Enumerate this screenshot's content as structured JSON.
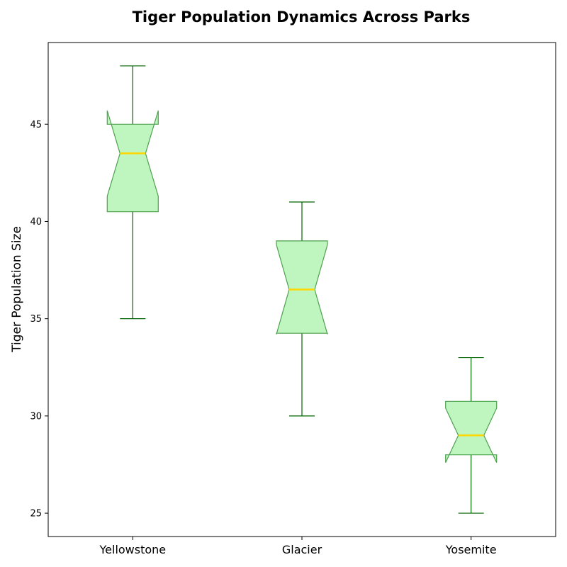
{
  "chart_data": {
    "type": "box",
    "title": "Tiger Population Dynamics Across Parks",
    "xlabel": "",
    "ylabel": "Tiger Population Size",
    "categories": [
      "Yellowstone",
      "Glacier",
      "Yosemite"
    ],
    "boxes": [
      {
        "category": "Yellowstone",
        "whisker_low": 35,
        "q1": 40.5,
        "median": 43.5,
        "q3": 45,
        "whisker_high": 48,
        "notch_low": 41.3,
        "notch_high": 45.7
      },
      {
        "category": "Glacier",
        "whisker_low": 30,
        "q1": 34.25,
        "median": 36.5,
        "q3": 39,
        "whisker_high": 41,
        "notch_low": 34.2,
        "notch_high": 38.8
      },
      {
        "category": "Yosemite",
        "whisker_low": 25,
        "q1": 28,
        "median": 29,
        "q3": 30.75,
        "whisker_high": 33,
        "notch_low": 27.6,
        "notch_high": 30.4
      }
    ],
    "ylim": [
      23.8,
      49.2
    ],
    "yticks": [
      25,
      30,
      35,
      40,
      45
    ],
    "notched": true,
    "grid": false,
    "colors": {
      "box_fill": "#bff5bf",
      "box_edge": "#4fa04f",
      "whisker": "#006400",
      "median": "#ffd700"
    }
  }
}
